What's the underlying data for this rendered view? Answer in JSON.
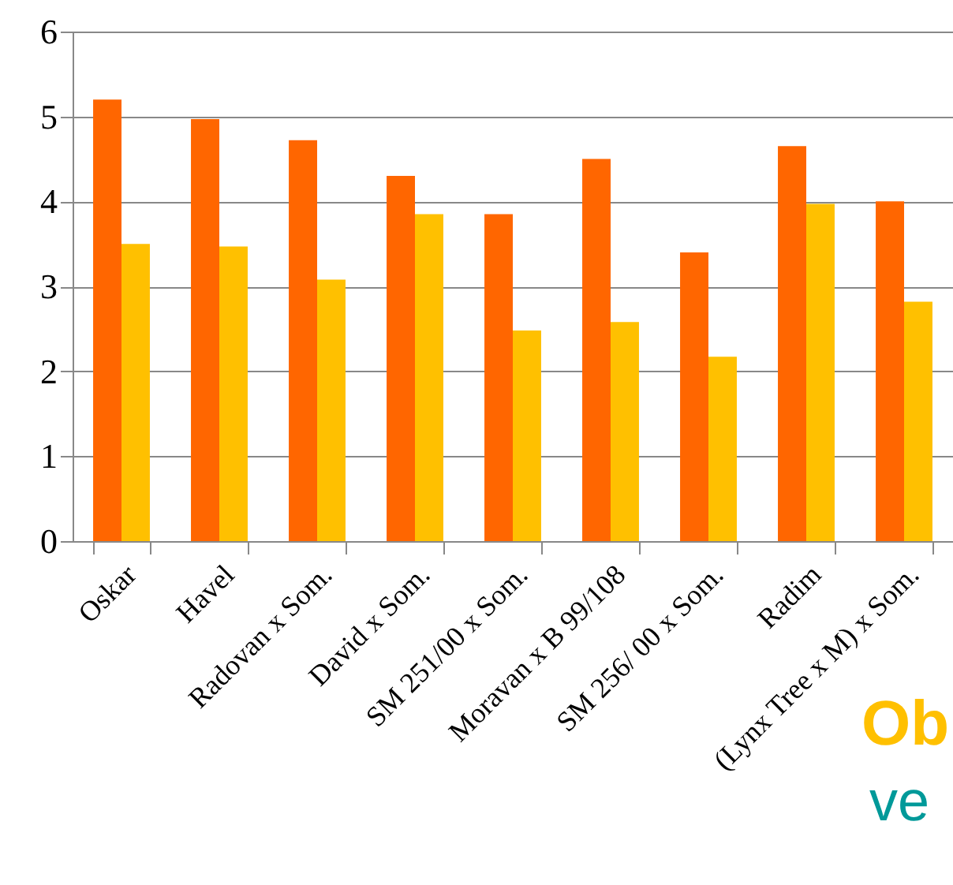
{
  "chart_data": {
    "type": "bar",
    "categories": [
      "Oskar",
      "Havel",
      "Radovan x Som.",
      "David x Som.",
      "SM 251/00 x Som.",
      "Moravan x B 99/108",
      "SM 256/ 00 x Som.",
      "Radim",
      "(Lynx Tree x M) x Som."
    ],
    "series": [
      {
        "color": "#ff6600",
        "values": [
          5.2,
          4.97,
          4.72,
          4.3,
          3.85,
          4.5,
          3.4,
          4.65,
          4.0
        ]
      },
      {
        "color": "#ffc000",
        "values": [
          3.5,
          3.47,
          3.08,
          3.85,
          2.48,
          2.58,
          2.17,
          3.97,
          2.82
        ]
      }
    ],
    "ylim": [
      0,
      6
    ],
    "yticks": [
      0,
      1,
      2,
      3,
      4,
      5,
      6
    ],
    "grid": "y",
    "legend": false,
    "annotations": [
      "Ob",
      "ve"
    ]
  }
}
